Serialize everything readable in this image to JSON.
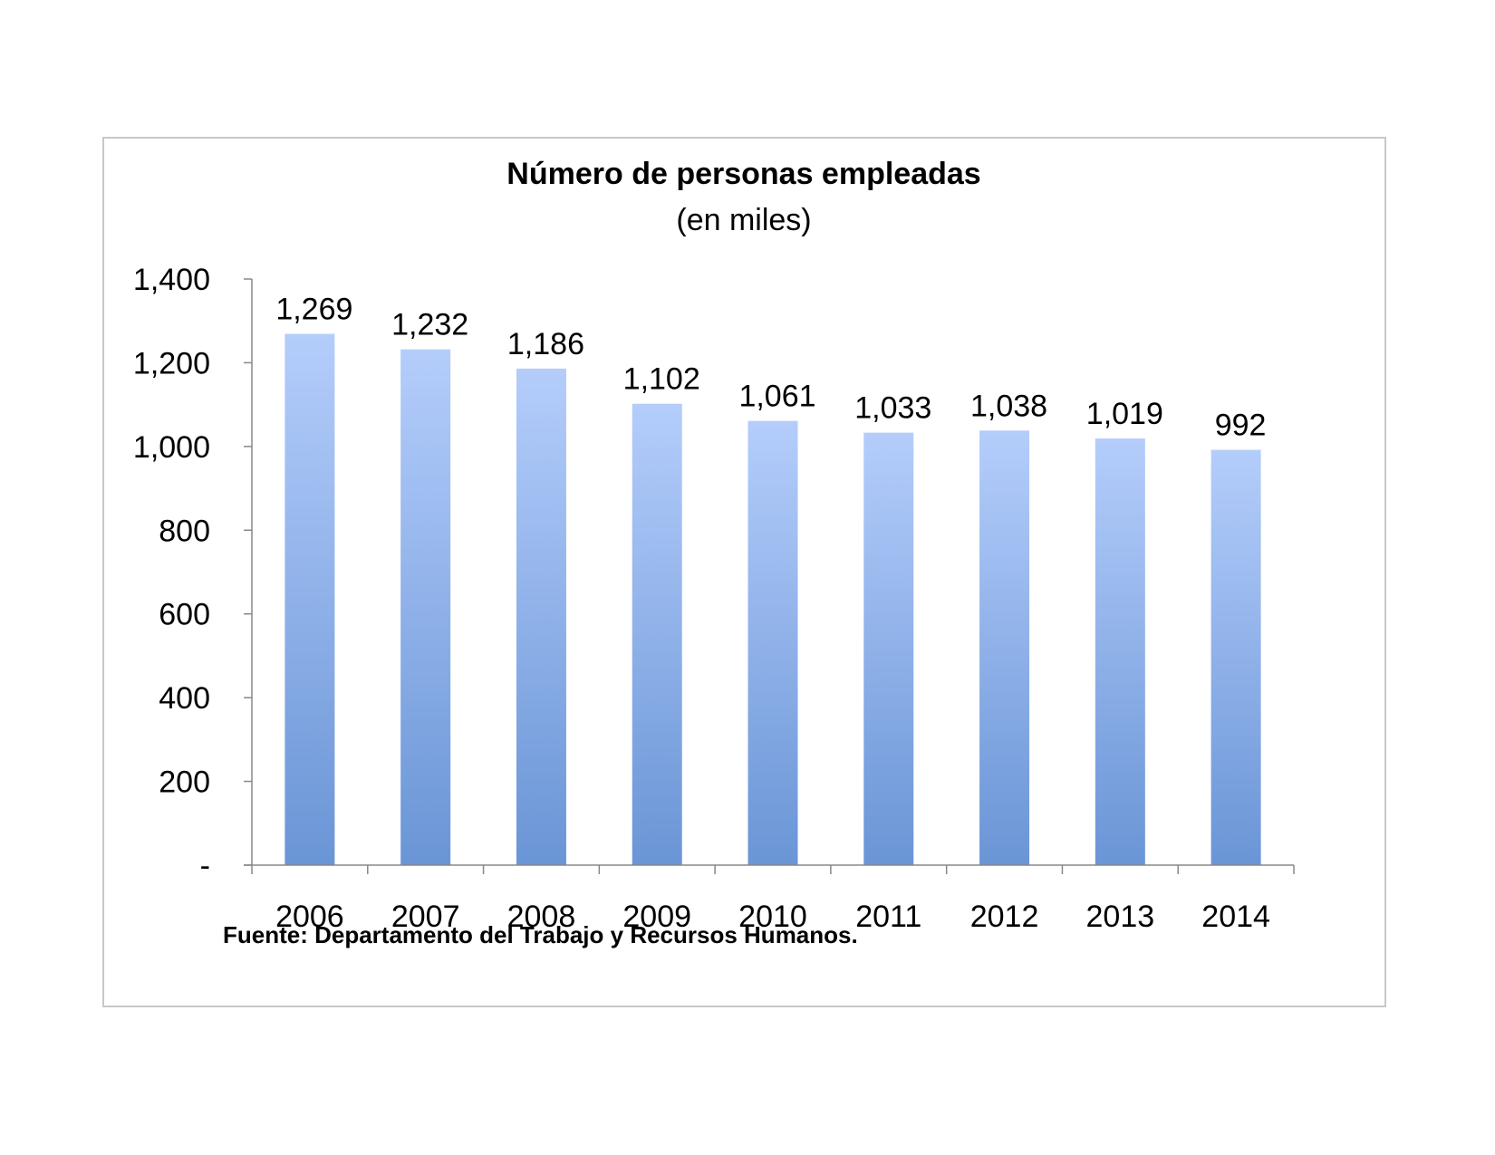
{
  "chart_data": {
    "type": "bar",
    "title": "Número de personas empleadas",
    "subtitle": "(en miles)",
    "categories": [
      "2006",
      "2007",
      "2008",
      "2009",
      "2010",
      "2011",
      "2012",
      "2013",
      "2014"
    ],
    "values": [
      1269,
      1232,
      1186,
      1102,
      1061,
      1033,
      1038,
      1019,
      992
    ],
    "data_labels": [
      "1,269",
      "1,232",
      "1,186",
      "1,102",
      "1,061",
      "1,033",
      "1,038",
      "1,019",
      "992"
    ],
    "y_ticks": [
      {
        "value": 0,
        "label": "-"
      },
      {
        "value": 200,
        "label": "200"
      },
      {
        "value": 400,
        "label": "400"
      },
      {
        "value": 600,
        "label": "600"
      },
      {
        "value": 800,
        "label": "800"
      },
      {
        "value": 1000,
        "label": "1,000"
      },
      {
        "value": 1200,
        "label": "1,200"
      },
      {
        "value": 1400,
        "label": "1,400"
      }
    ],
    "ylim": [
      0,
      1400
    ],
    "xlabel": "",
    "ylabel": "",
    "grid": false,
    "legend": "none",
    "source": "Fuente: Departamento del Trabajo y Recursos Humanos.",
    "colors": {
      "bar_top": "#b4cdfb",
      "bar_bottom": "#6a95d6",
      "axis": "#888888",
      "frame": "#c8c8c8"
    }
  }
}
